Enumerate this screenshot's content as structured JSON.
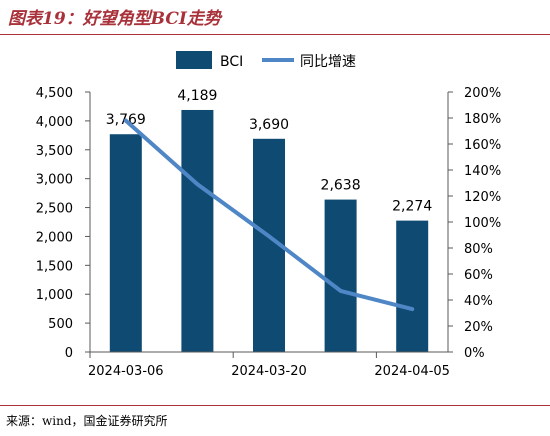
{
  "title": "图表19：好望角型BCI走势",
  "source": "来源：wind，国金证券研究所",
  "colors": {
    "title": "#a9313a",
    "bar": "#0f4a72",
    "line": "#4f86c6",
    "axis": "#595959"
  },
  "chart_data": {
    "type": "bar",
    "x_ticks": [
      "2024-03-06",
      "2024-03-20",
      "2024-04-05"
    ],
    "y_ticks": [
      "0",
      "500",
      "1,000",
      "1,500",
      "2,000",
      "2,500",
      "3,000",
      "3,500",
      "4,000",
      "4,500"
    ],
    "y2_ticks": [
      "0%",
      "20%",
      "40%",
      "60%",
      "80%",
      "100%",
      "120%",
      "140%",
      "160%",
      "180%",
      "200%"
    ],
    "ylim": [
      0,
      4500
    ],
    "y2lim": [
      0,
      2
    ],
    "legend_position": "top",
    "grid": false,
    "series": [
      {
        "name": "BCI",
        "type": "bar",
        "axis": "left",
        "values": [
          3769,
          4189,
          3690,
          2638,
          2274
        ],
        "labels": [
          "3,769",
          "4,189",
          "3,690",
          "2,638",
          "2,274"
        ]
      },
      {
        "name": "同比增速",
        "type": "line",
        "axis": "right",
        "values": [
          1.78,
          1.29,
          0.89,
          0.47,
          0.33
        ]
      }
    ]
  }
}
